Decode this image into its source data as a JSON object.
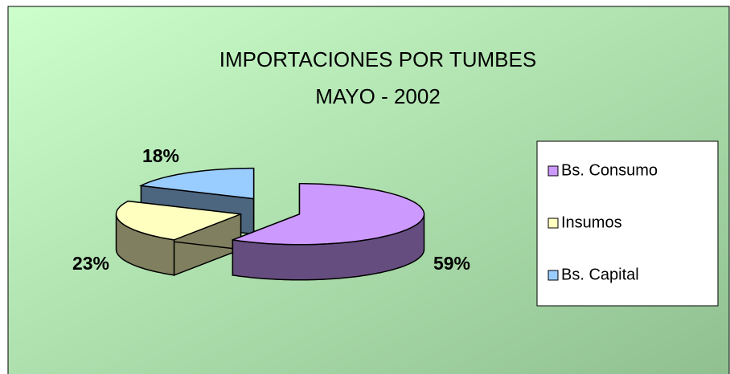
{
  "chart_data": {
    "type": "pie3d",
    "title": "IMPORTACIONES POR TUMBES",
    "subtitle": "MAYO - 2002",
    "categories": [
      "Bs. Consumo",
      "Insumos",
      "Bs. Capital"
    ],
    "values": [
      59,
      23,
      18
    ],
    "value_labels": [
      "59%",
      "23%",
      "18%"
    ],
    "colors": [
      "#cc99ff",
      "#ffffc0",
      "#99ccff"
    ],
    "legend": "right"
  }
}
